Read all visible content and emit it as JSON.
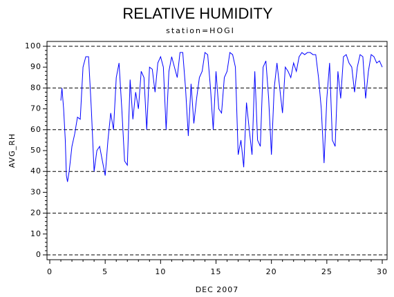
{
  "chart_data": {
    "type": "line",
    "title": "RELATIVE HUMIDITY",
    "subtitle": "station=HOGI",
    "x_label": "DEC 2007",
    "y_label": "AVG_RH",
    "xlim": [
      0,
      30
    ],
    "xticks": [
      0,
      5,
      10,
      15,
      20,
      25,
      30
    ],
    "ylim": [
      0,
      100
    ],
    "yticks": [
      0,
      10,
      20,
      30,
      40,
      50,
      60,
      70,
      80,
      90,
      100
    ],
    "grid_values": [
      0,
      20,
      40,
      60,
      80,
      100
    ],
    "series": [
      {
        "color": "#0000ff",
        "x": [
          1.0,
          1.1,
          1.25,
          1.4,
          1.5,
          1.6,
          1.75,
          2.0,
          2.25,
          2.5,
          2.75,
          3.0,
          3.25,
          3.5,
          3.75,
          4.0,
          4.25,
          4.5,
          4.75,
          5.0,
          5.25,
          5.5,
          5.75,
          6.0,
          6.25,
          6.5,
          6.75,
          7.0,
          7.25,
          7.5,
          7.75,
          8.0,
          8.25,
          8.5,
          8.75,
          9.0,
          9.25,
          9.5,
          9.75,
          10.0,
          10.25,
          10.5,
          10.75,
          11.0,
          11.25,
          11.5,
          11.75,
          12.0,
          12.25,
          12.5,
          12.75,
          13.0,
          13.25,
          13.5,
          13.75,
          14.0,
          14.25,
          14.5,
          14.75,
          15.0,
          15.25,
          15.5,
          15.75,
          16.0,
          16.25,
          16.5,
          16.75,
          17.0,
          17.25,
          17.5,
          17.75,
          18.0,
          18.25,
          18.5,
          18.75,
          19.0,
          19.25,
          19.5,
          19.75,
          20.0,
          20.25,
          20.5,
          20.75,
          21.0,
          21.25,
          21.5,
          21.75,
          22.0,
          22.25,
          22.5,
          22.75,
          23.0,
          23.25,
          23.5,
          23.75,
          24.0,
          24.25,
          24.5,
          24.75,
          25.0,
          25.25,
          25.5,
          25.75,
          26.0,
          26.25,
          26.5,
          26.75,
          27.0,
          27.25,
          27.5,
          27.75,
          28.0,
          28.25,
          28.5,
          28.75,
          29.0,
          29.25,
          29.5,
          29.75,
          30.0
        ],
        "values": [
          74,
          80,
          70,
          55,
          38,
          35,
          40,
          52,
          58,
          66,
          65,
          90,
          95,
          95,
          70,
          40,
          50,
          52,
          45,
          38,
          55,
          68,
          60,
          85,
          92,
          70,
          45,
          43,
          84,
          65,
          78,
          70,
          88,
          85,
          60,
          90,
          89,
          78,
          92,
          95,
          90,
          60,
          88,
          95,
          90,
          85,
          97,
          97,
          80,
          57,
          82,
          63,
          75,
          85,
          88,
          97,
          96,
          80,
          60,
          88,
          70,
          68,
          85,
          88,
          97,
          96,
          90,
          48,
          55,
          42,
          73,
          60,
          48,
          88,
          55,
          52,
          90,
          93,
          75,
          48,
          80,
          92,
          80,
          68,
          90,
          88,
          85,
          92,
          88,
          95,
          97,
          96,
          97,
          97,
          96,
          96,
          85,
          70,
          44,
          75,
          92,
          55,
          52,
          88,
          75,
          95,
          96,
          92,
          90,
          78,
          90,
          96,
          95,
          75,
          88,
          96,
          95,
          92,
          93,
          90
        ]
      }
    ]
  }
}
